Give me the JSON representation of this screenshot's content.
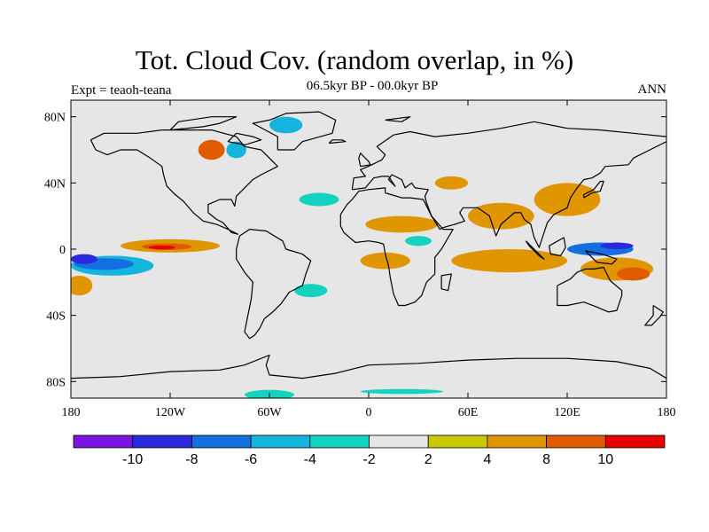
{
  "title": "Tot. Cloud Cov. (random overlap, in %)",
  "subtitle": "06.5kyr BP - 00.0kyr BP",
  "left_label": "Expt = teaoh-teana",
  "right_label": "ANN",
  "colors": {
    "land_outline": "#000000",
    "background_field": "#e6e6e6"
  },
  "chart_data": {
    "type": "heatmap",
    "projection": "cylindrical-equidistant",
    "lon_range": [
      -180,
      180
    ],
    "lat_range": [
      -90,
      90
    ],
    "x_ticks": [
      {
        "value": -180,
        "label": "180"
      },
      {
        "value": -120,
        "label": "120W"
      },
      {
        "value": -60,
        "label": "60W"
      },
      {
        "value": 0,
        "label": "0"
      },
      {
        "value": 60,
        "label": "60E"
      },
      {
        "value": 120,
        "label": "120E"
      },
      {
        "value": 180,
        "label": "180"
      }
    ],
    "y_ticks": [
      {
        "value": 80,
        "label": "80N"
      },
      {
        "value": 40,
        "label": "40N"
      },
      {
        "value": 0,
        "label": "0"
      },
      {
        "value": -40,
        "label": "40S"
      },
      {
        "value": -80,
        "label": "80S"
      }
    ],
    "colorbar": {
      "colors": [
        "#7a14e0",
        "#2a2adc",
        "#1470e0",
        "#14b4dc",
        "#14d2c0",
        "#e6e6e6",
        "#c8c800",
        "#e09600",
        "#e05a00",
        "#e60000"
      ],
      "boundary_labels": [
        "-10",
        "-8",
        "-6",
        "-4",
        "-2",
        "2",
        "4",
        "8",
        "10"
      ],
      "boundary_positions": [
        1,
        2,
        3,
        4,
        5,
        6,
        7,
        8,
        9
      ]
    },
    "anomaly_regions": [
      {
        "lon": -155,
        "lat": -10,
        "rx": 25,
        "ry": 6,
        "value": -5
      },
      {
        "lon": -160,
        "lat": -9,
        "rx": 18,
        "ry": 3.5,
        "value": -8
      },
      {
        "lon": -172,
        "lat": -6,
        "rx": 8,
        "ry": 3,
        "value": -10
      },
      {
        "lon": -175,
        "lat": -22,
        "rx": 8,
        "ry": 6,
        "value": 5
      },
      {
        "lon": -120,
        "lat": 2,
        "rx": 30,
        "ry": 4,
        "value": 5
      },
      {
        "lon": -122,
        "lat": 1.5,
        "rx": 15,
        "ry": 2,
        "value": 9
      },
      {
        "lon": -125,
        "lat": 1,
        "rx": 8,
        "ry": 1.2,
        "value": 11
      },
      {
        "lon": -95,
        "lat": 60,
        "rx": 8,
        "ry": 6,
        "value": 8
      },
      {
        "lon": -80,
        "lat": 60,
        "rx": 6,
        "ry": 5,
        "value": -6
      },
      {
        "lon": -50,
        "lat": 75,
        "rx": 10,
        "ry": 5,
        "value": -5
      },
      {
        "lon": -30,
        "lat": 30,
        "rx": 12,
        "ry": 4,
        "value": -3
      },
      {
        "lon": -35,
        "lat": -25,
        "rx": 10,
        "ry": 4,
        "value": -3
      },
      {
        "lon": 20,
        "lat": 15,
        "rx": 22,
        "ry": 5,
        "value": 5
      },
      {
        "lon": 15,
        "lat": 14,
        "rx": 15,
        "ry": 2.5,
        "value": 7
      },
      {
        "lon": 10,
        "lat": -7,
        "rx": 15,
        "ry": 5,
        "value": 5
      },
      {
        "lon": 30,
        "lat": 5,
        "rx": 8,
        "ry": 3,
        "value": -3
      },
      {
        "lon": 80,
        "lat": 20,
        "rx": 20,
        "ry": 8,
        "value": 5
      },
      {
        "lon": 85,
        "lat": -7,
        "rx": 35,
        "ry": 7,
        "value": 5
      },
      {
        "lon": 90,
        "lat": -7,
        "rx": 18,
        "ry": 4,
        "value": 7
      },
      {
        "lon": 140,
        "lat": 0,
        "rx": 20,
        "ry": 4,
        "value": -7
      },
      {
        "lon": 150,
        "lat": 2,
        "rx": 10,
        "ry": 2,
        "value": -10
      },
      {
        "lon": 150,
        "lat": -12,
        "rx": 22,
        "ry": 7,
        "value": 7
      },
      {
        "lon": 160,
        "lat": -15,
        "rx": 10,
        "ry": 4,
        "value": 9
      },
      {
        "lon": 120,
        "lat": 30,
        "rx": 20,
        "ry": 10,
        "value": 4
      },
      {
        "lon": 50,
        "lat": 40,
        "rx": 10,
        "ry": 4,
        "value": 5
      },
      {
        "lon": -60,
        "lat": -88,
        "rx": 15,
        "ry": 3,
        "value": -4
      },
      {
        "lon": 20,
        "lat": -86,
        "rx": 25,
        "ry": 1.5,
        "value": -3
      }
    ]
  }
}
